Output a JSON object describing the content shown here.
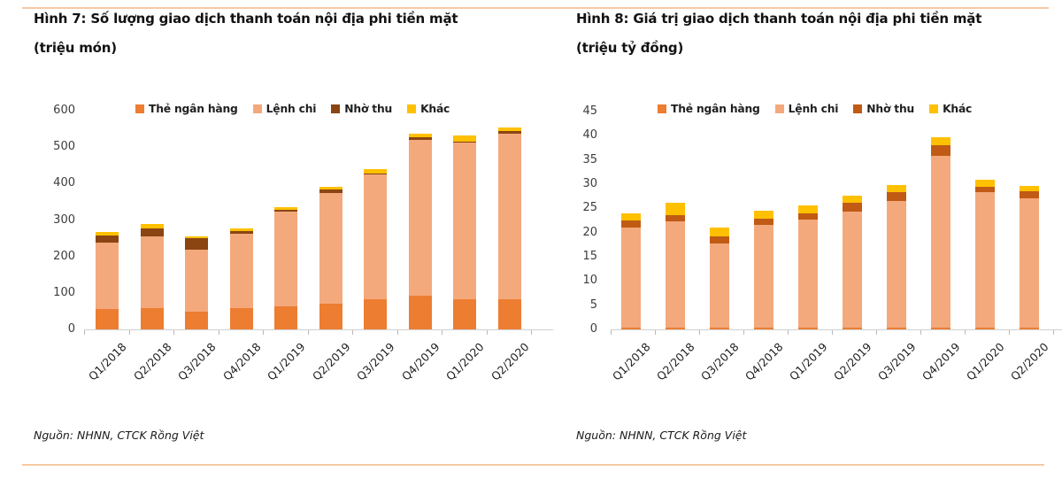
{
  "accent_line_color": "#F7C9A3",
  "figures": [
    {
      "title": "Hình 7: Số lượng giao dịch thanh toán nội địa phi tiền mặt",
      "unit": "(triệu món)",
      "source": "Nguồn: NHNN, CTCK Rồng Việt"
    },
    {
      "title": "Hình 8: Giá trị giao dịch thanh toán nội địa phi tiền mặt",
      "unit": "(triệu tỷ đồng)",
      "source": "Nguồn: NHNN, CTCK Rồng Việt"
    }
  ],
  "chart_data": [
    {
      "type": "bar",
      "stacked": true,
      "title": "Hình 7: Số lượng giao dịch thanh toán nội địa phi tiền mặt (triệu món)",
      "categories": [
        "Q1/2018",
        "Q2/2018",
        "Q3/2018",
        "Q4/2018",
        "Q1/2019",
        "Q2/2019",
        "Q3/2019",
        "Q4/2019",
        "Q1/2020",
        "Q2/2020"
      ],
      "series": [
        {
          "name": "Thẻ ngân hàng",
          "color": "#ED7D31",
          "values": [
            55,
            58,
            48,
            58,
            62,
            70,
            82,
            92,
            82,
            82
          ]
        },
        {
          "name": "Lệnh chi",
          "color": "#F4A97C",
          "values": [
            182,
            197,
            171,
            204,
            260,
            304,
            343,
            428,
            430,
            454
          ]
        },
        {
          "name": "Nhờ thu",
          "color": "#8A4513",
          "values": [
            21,
            21,
            31,
            8,
            6,
            10,
            3,
            7,
            3,
            7
          ]
        },
        {
          "name": "Khác",
          "color": "#FFC000",
          "values": [
            9,
            12,
            6,
            7,
            7,
            7,
            11,
            10,
            18,
            10
          ]
        }
      ],
      "totals": [
        267,
        288,
        256,
        277,
        335,
        391,
        439,
        537,
        533,
        553
      ],
      "ylabel": "triệu món",
      "ylim": [
        0,
        600
      ],
      "ytick_step": 100,
      "grid": false,
      "legend_position": "top"
    },
    {
      "type": "bar",
      "stacked": true,
      "title": "Hình 8: Giá trị giao dịch thanh toán nội địa phi tiền mặt (triệu tỷ đồng)",
      "categories": [
        "Q1/2018",
        "Q2/2018",
        "Q3/2018",
        "Q4/2018",
        "Q1/2019",
        "Q2/2019",
        "Q3/2019",
        "Q4/2019",
        "Q1/2020",
        "Q2/2020"
      ],
      "series": [
        {
          "name": "Thẻ ngân hàng",
          "color": "#ED7D31",
          "values": [
            0.3,
            0.3,
            0.3,
            0.3,
            0.3,
            0.3,
            0.3,
            0.3,
            0.3,
            0.3
          ]
        },
        {
          "name": "Lệnh chi",
          "color": "#F4A97C",
          "values": [
            20.7,
            22.0,
            17.4,
            21.3,
            22.3,
            24.0,
            26.2,
            35.6,
            28.0,
            26.8
          ]
        },
        {
          "name": "Nhờ thu",
          "color": "#C05A15",
          "values": [
            1.5,
            1.3,
            1.5,
            1.2,
            1.4,
            1.9,
            1.8,
            2.1,
            1.2,
            1.5
          ]
        },
        {
          "name": "Khác",
          "color": "#FFC000",
          "values": [
            1.5,
            2.6,
            1.9,
            1.7,
            1.7,
            1.5,
            1.6,
            1.7,
            1.5,
            1.0
          ]
        }
      ],
      "totals": [
        24.0,
        26.2,
        21.1,
        24.5,
        25.7,
        27.7,
        29.9,
        39.7,
        31.0,
        29.6
      ],
      "ylabel": "triệu tỷ đồng",
      "ylim": [
        0,
        45
      ],
      "ytick_step": 5,
      "grid": false,
      "legend_position": "top"
    }
  ]
}
